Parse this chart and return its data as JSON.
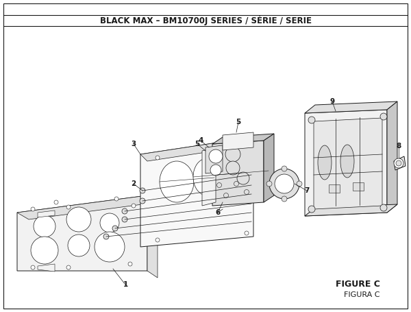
{
  "title": "BLACK MAX – BM10700J SERIES / SÉRIE / SERIE",
  "figure_label": "FIGURE C",
  "figura_label": "FIGURA C",
  "bg_color": "#ffffff",
  "line_color": "#1a1a1a",
  "fill_light": "#f2f2f2",
  "fill_mid": "#e0e0e0",
  "fill_dark": "#c8c8c8",
  "title_fontsize": 8.5,
  "label_fontsize": 7.5
}
